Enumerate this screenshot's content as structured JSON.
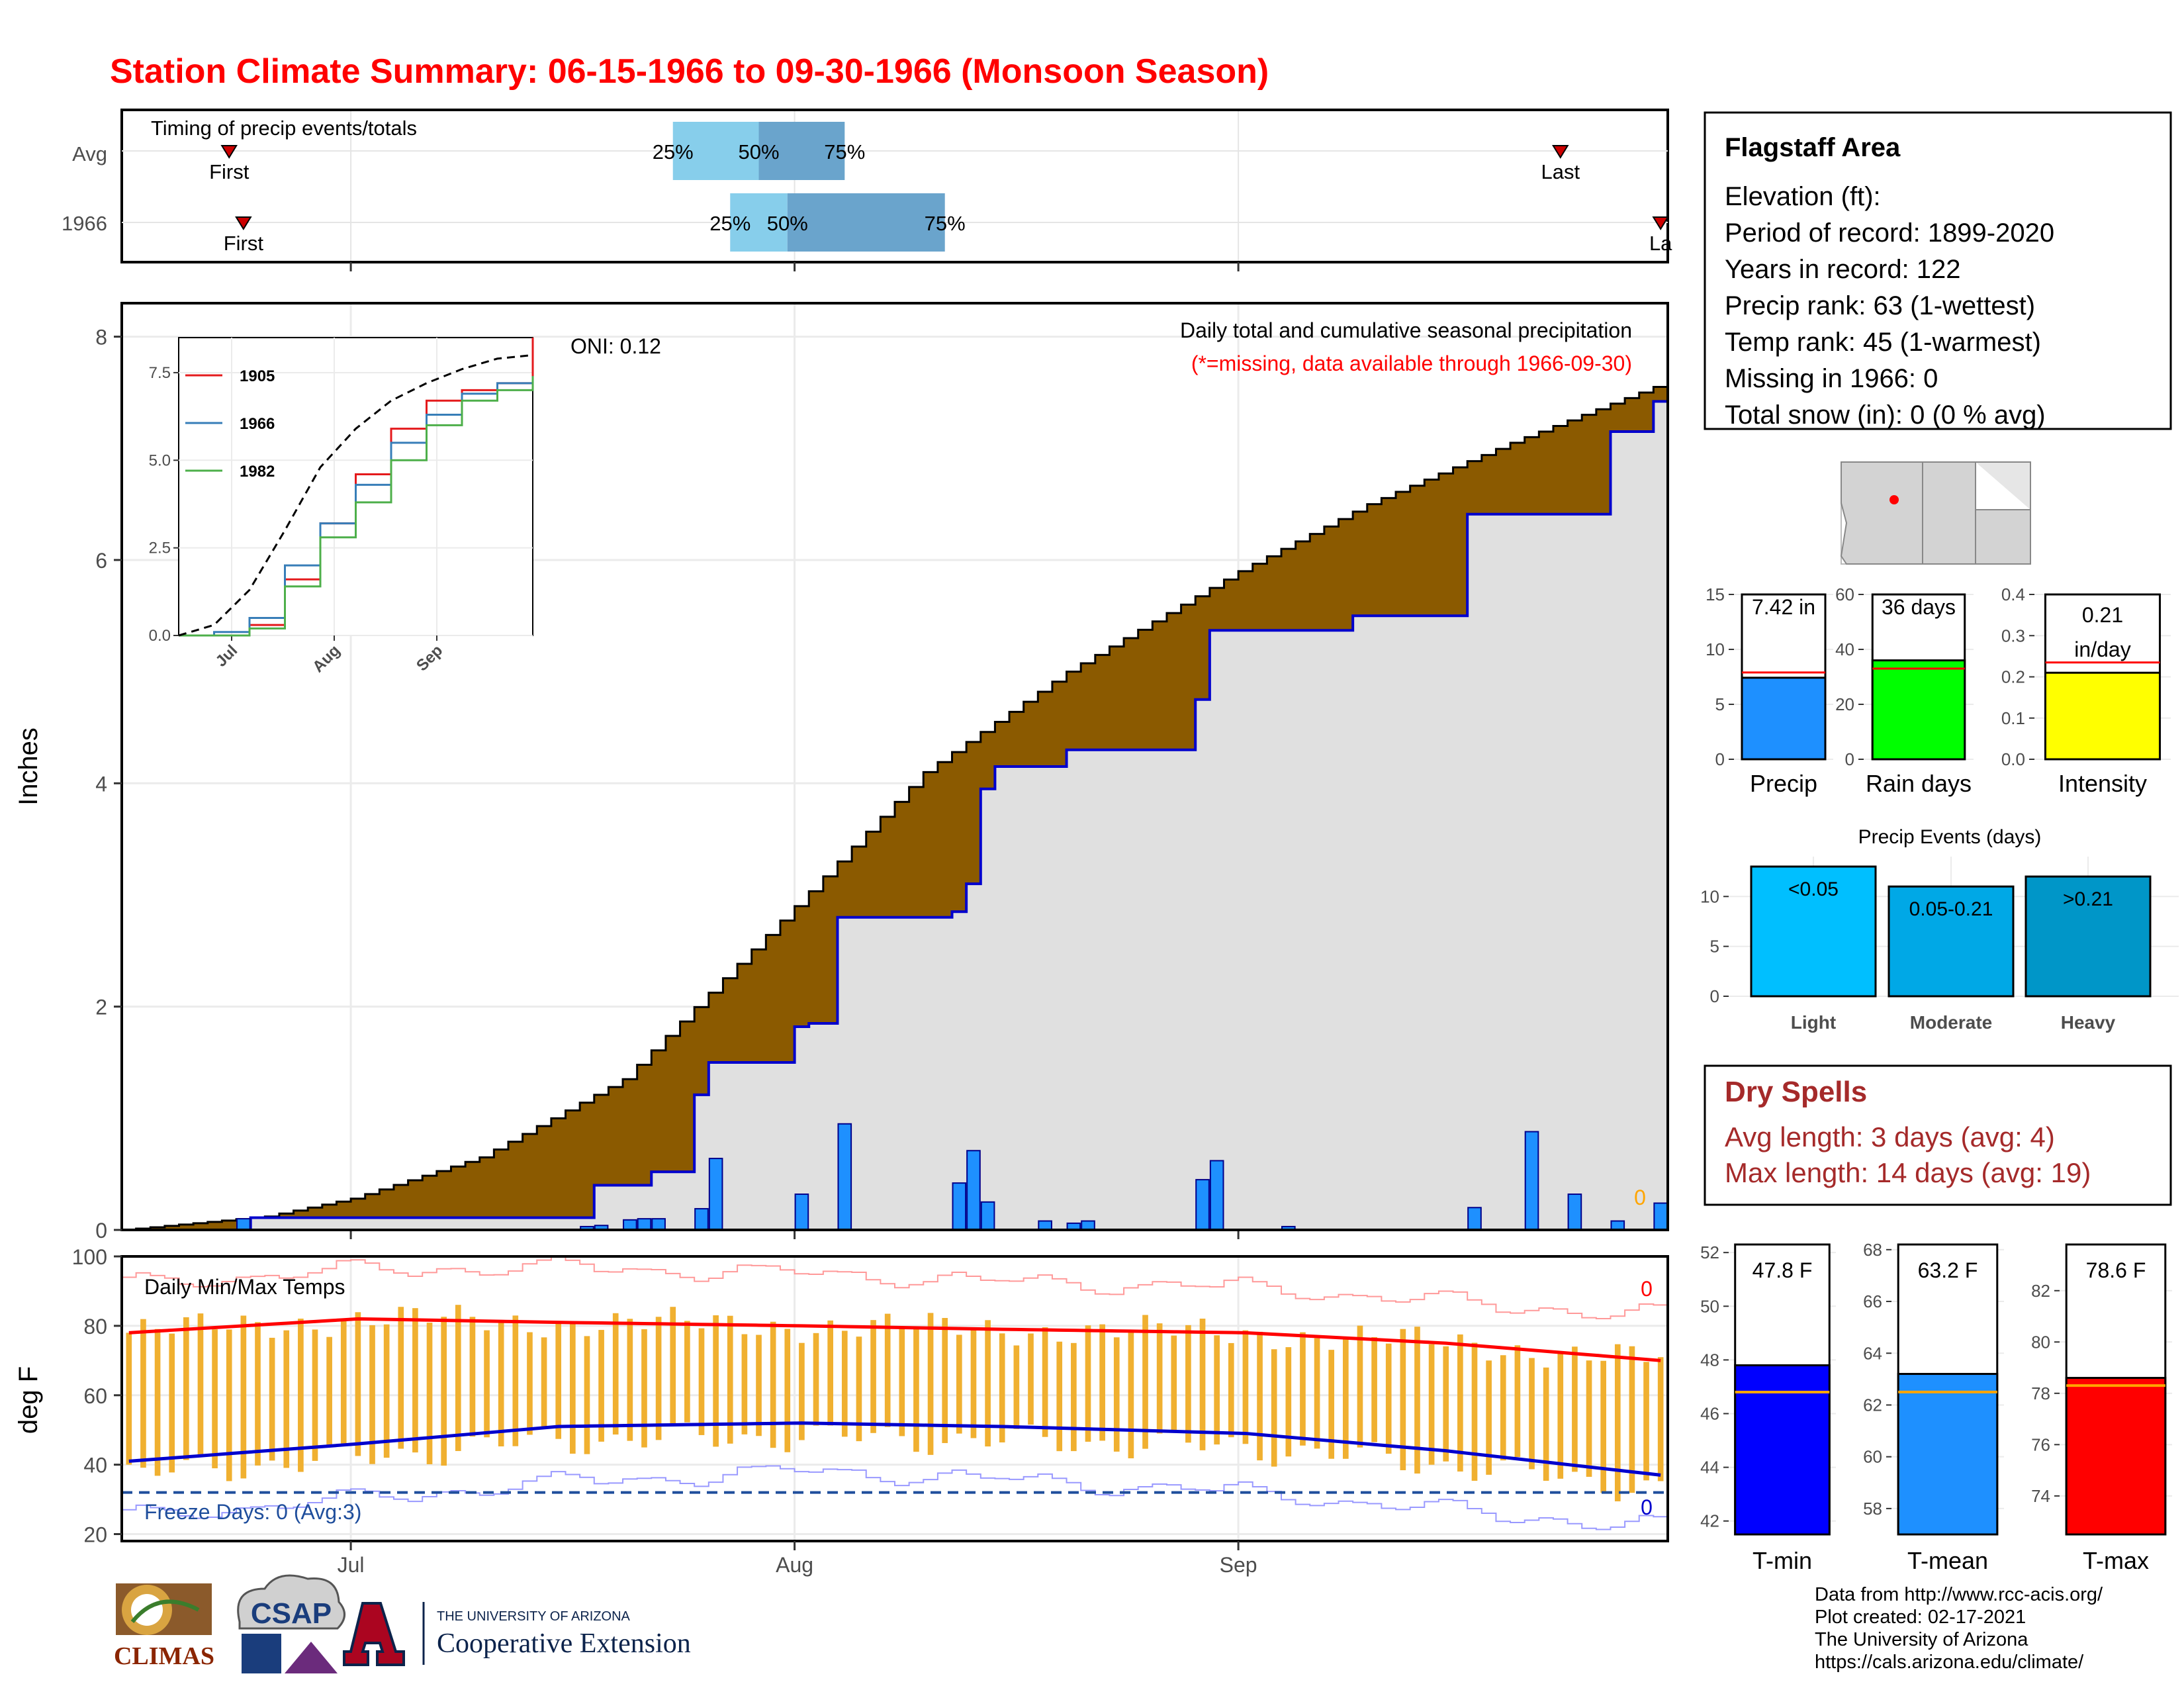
{
  "title": "Station Climate Summary: 06-15-1966 to 09-30-1966 (Monsoon Season)",
  "colors": {
    "title": "#ff0000",
    "avg_cum_fill": "#8b5a00",
    "obs_cum_fill": "#e0e0e0",
    "obs_line": "#0000cd",
    "daily_bar": "#1e90ff",
    "temp_bar": "#f0b030",
    "tmax_avg": "#ff0000",
    "tmin_avg": "#0000cd",
    "q_light": "#87ceeb",
    "q_dark": "#6aa4cc",
    "dry_spells": "#a52a2a",
    "freeze": "#1f4e9c",
    "missing_note": "#ff0000"
  },
  "timing": {
    "title": "Timing of precip events/totals",
    "rows": [
      {
        "label": "Avg",
        "first_label": "First",
        "last_label": "Last",
        "first": "06-22",
        "q25": "07-23",
        "q50": "07-29",
        "q75": "08-04",
        "last": "09-23",
        "q25_label": "25%",
        "q50_label": "50%",
        "q75_label": "75%"
      },
      {
        "label": "1966",
        "first_label": "First",
        "last_label": "La",
        "first": "06-23",
        "q25": "07-27",
        "q50": "07-31",
        "q75": "08-11",
        "last": "09-30",
        "q25_label": "25%",
        "q50_label": "50%",
        "q75_label": "75%"
      }
    ]
  },
  "precip_panel": {
    "ylabel": "Inches",
    "oni": "ONI: 0.12",
    "annot_title": "Daily total and cumulative seasonal precipitation",
    "annot_note": "(*=missing, data available through 1966-09-30)",
    "missing_count": "0",
    "yticks": [
      "0",
      "2",
      "4",
      "6",
      "8"
    ]
  },
  "inset": {
    "legend": [
      "1905",
      "1966",
      "1982"
    ],
    "legend_colors": [
      "#e41a1c",
      "#377eb8",
      "#4daf4a"
    ],
    "yticks": [
      "0.0",
      "2.5",
      "5.0",
      "7.5"
    ],
    "xticks": [
      "Jul",
      "Aug",
      "Sep"
    ]
  },
  "temp_panel": {
    "ylabel": "deg F",
    "title": "Daily Min/Max Temps",
    "freeze_label": "Freeze Days: 0 (Avg:3)",
    "max_record_count": "0",
    "min_record_count": "0",
    "yticks": [
      "20",
      "40",
      "60",
      "80",
      "100"
    ],
    "xticks": [
      "Jul",
      "Aug",
      "Sep"
    ]
  },
  "info": {
    "name": "Flagstaff Area",
    "lines": [
      "Elevation (ft):",
      "Period of record: 1899-2020",
      "Years in record: 122",
      "Precip rank: 63 (1-wettest)",
      "Temp rank: 45 (1-warmest)",
      "Missing in 1966: 0",
      "Total snow (in): 0 (0 % avg)"
    ]
  },
  "summary_bars": [
    {
      "name": "Precip",
      "label": "7.42 in",
      "value": 7.42,
      "avg": 7.9,
      "ymax": 15,
      "yticks": [
        "0",
        "5",
        "10",
        "15"
      ],
      "color": "#1e90ff"
    },
    {
      "name": "Rain days",
      "label": "36 days",
      "value": 36,
      "avg": 33,
      "ymax": 60,
      "yticks": [
        "0",
        "20",
        "40",
        "60"
      ],
      "color": "#00ff00"
    },
    {
      "name": "Intensity",
      "label": "0.21",
      "label2": "in/day",
      "value": 0.21,
      "avg": 0.235,
      "ymax": 0.4,
      "yticks": [
        "0.0",
        "0.1",
        "0.2",
        "0.3",
        "0.4"
      ],
      "color": "#ffff00"
    }
  ],
  "events": {
    "title": "Precip Events (days)",
    "yticks": [
      "0",
      "5",
      "10"
    ],
    "bars": [
      {
        "name": "Light",
        "label": "<0.05",
        "value": 13,
        "color": "#00bfff"
      },
      {
        "name": "Moderate",
        "label": "0.05-0.21",
        "value": 11,
        "color": "#00a8e6"
      },
      {
        "name": "Heavy",
        "label": ">0.21",
        "value": 12,
        "color": "#0096c8"
      }
    ]
  },
  "dry_spells": {
    "title": "Dry Spells",
    "avg_line": "Avg length: 3 days (avg: 4)",
    "max_line": "Max length: 14 days (avg: 19)"
  },
  "temp_bars": [
    {
      "name": "T-min",
      "label": "47.8 F",
      "value": 47.8,
      "avg": 46.8,
      "ymin": 41.5,
      "ymax": 52.3,
      "yticks": [
        "42",
        "44",
        "46",
        "48",
        "50",
        "52"
      ],
      "color": "#0000ff"
    },
    {
      "name": "T-mean",
      "label": "63.2 F",
      "value": 63.2,
      "avg": 62.5,
      "ymin": 57,
      "ymax": 68.2,
      "yticks": [
        "58",
        "60",
        "62",
        "64",
        "66",
        "68"
      ],
      "color": "#1e90ff"
    },
    {
      "name": "T-max",
      "label": "78.6 F",
      "value": 78.6,
      "avg": 78.3,
      "ymin": 72.5,
      "ymax": 83.8,
      "yticks": [
        "74",
        "76",
        "78",
        "80",
        "82"
      ],
      "color": "#ff0000"
    }
  ],
  "footer": {
    "lines": [
      "Data from http://www.rcc-acis.org/",
      "Plot created: 02-17-2021",
      "The University of Arizona",
      "https://cals.arizona.edu/climate/"
    ],
    "logo_climas": "CLIMAS",
    "logo_csap": "CSAP",
    "coop_small": "THE UNIVERSITY OF ARIZONA",
    "coop_big": "Cooperative Extension"
  },
  "chart_data": [
    {
      "type": "bar",
      "title": "Timing of precip events/totals",
      "categories": [
        "Avg",
        "1966"
      ],
      "series": [
        {
          "name": "First",
          "values": [
            "06-22",
            "06-23"
          ]
        },
        {
          "name": "25%",
          "values": [
            "07-23",
            "07-27"
          ]
        },
        {
          "name": "50%",
          "values": [
            "07-29",
            "07-31"
          ]
        },
        {
          "name": "75%",
          "values": [
            "08-04",
            "08-11"
          ]
        },
        {
          "name": "Last",
          "values": [
            "09-23",
            "09-30"
          ]
        }
      ]
    },
    {
      "type": "area",
      "title": "Daily total and cumulative seasonal precipitation",
      "ylabel": "Inches",
      "ylim": [
        0,
        8.3
      ],
      "x_range": [
        "1966-06-15",
        "1966-09-30"
      ],
      "xticks": [
        "Jul",
        "Aug",
        "Sep"
      ],
      "series": [
        {
          "name": "avg_cum",
          "x": [
            "06-15",
            "06-25",
            "07-01",
            "07-10",
            "07-20",
            "08-01",
            "08-10",
            "08-20",
            "09-01",
            "09-10",
            "09-20",
            "09-30"
          ],
          "values": [
            0,
            0.12,
            0.28,
            0.65,
            1.35,
            2.9,
            4.1,
            5.0,
            5.9,
            6.5,
            7.05,
            7.55
          ]
        },
        {
          "name": "obs_cum",
          "x": [
            "06-15",
            "06-23",
            "06-24",
            "07-10",
            "07-18",
            "07-22",
            "07-25",
            "07-26",
            "08-01",
            "08-02",
            "08-04",
            "08-12",
            "08-13",
            "08-14",
            "08-15",
            "08-20",
            "08-29",
            "08-30",
            "09-09",
            "09-17",
            "09-27",
            "09-30"
          ],
          "values": [
            0,
            0,
            0.11,
            0.11,
            0.4,
            0.52,
            1.21,
            1.5,
            1.82,
            1.85,
            2.8,
            2.85,
            3.1,
            3.95,
            4.15,
            4.3,
            4.75,
            5.37,
            5.5,
            6.41,
            7.15,
            7.42
          ]
        },
        {
          "name": "daily",
          "x": [
            "06-23",
            "07-17",
            "07-18",
            "07-20",
            "07-21",
            "07-22",
            "07-25",
            "07-26",
            "08-01",
            "08-04",
            "08-12",
            "08-13",
            "08-14",
            "08-18",
            "08-20",
            "08-21",
            "08-29",
            "08-30",
            "09-04",
            "09-17",
            "09-21",
            "09-24",
            "09-27",
            "09-30"
          ],
          "values": [
            0.1,
            0.03,
            0.04,
            0.09,
            0.1,
            0.1,
            0.19,
            0.64,
            0.32,
            0.95,
            0.42,
            0.71,
            0.25,
            0.08,
            0.06,
            0.08,
            0.45,
            0.62,
            0.03,
            0.2,
            0.88,
            0.32,
            0.08,
            0.24
          ]
        }
      ]
    },
    {
      "type": "line",
      "title": "inset cumulative precipitation",
      "ylim": [
        0,
        8.5
      ],
      "series": [
        {
          "name": "1905",
          "values": [
            0,
            0,
            0.3,
            1.6,
            3.2,
            4.6,
            5.9,
            6.7,
            7.0,
            7.2,
            8.5
          ]
        },
        {
          "name": "1966",
          "values": [
            0,
            0.1,
            0.5,
            2.0,
            3.2,
            4.3,
            5.5,
            6.3,
            6.9,
            7.2,
            7.4
          ]
        },
        {
          "name": "1982",
          "values": [
            0,
            0,
            0.2,
            1.4,
            2.8,
            3.8,
            5.0,
            6.0,
            6.7,
            7.0,
            7.4
          ]
        },
        {
          "name": "avg",
          "values": [
            0,
            0.3,
            1.3,
            3.0,
            4.8,
            5.9,
            6.7,
            7.2,
            7.6,
            7.9,
            8.0
          ]
        }
      ]
    },
    {
      "type": "bar",
      "title": "Daily Min/Max Temps",
      "ylabel": "deg F",
      "ylim": [
        18,
        100
      ],
      "series": [
        {
          "name": "tmax_avg",
          "x": [
            "06-15",
            "07-01",
            "07-15",
            "08-01",
            "08-15",
            "09-01",
            "09-15",
            "09-30"
          ],
          "values": [
            78,
            82,
            81,
            80,
            79,
            78,
            75,
            70
          ]
        },
        {
          "name": "tmin_avg",
          "x": [
            "06-15",
            "07-01",
            "07-15",
            "08-01",
            "08-15",
            "09-01",
            "09-15",
            "09-30"
          ],
          "values": [
            41,
            46,
            51,
            52,
            51,
            49,
            44,
            37
          ]
        },
        {
          "name": "tmax_record",
          "x": [
            "06-15",
            "07-01",
            "07-15",
            "08-01",
            "08-15",
            "09-01",
            "09-15",
            "09-30"
          ],
          "values": [
            92,
            96,
            97,
            95,
            93,
            91,
            87,
            83
          ]
        },
        {
          "name": "tmin_record",
          "x": [
            "06-15",
            "07-01",
            "07-15",
            "08-01",
            "08-15",
            "09-01",
            "09-15",
            "09-30"
          ],
          "values": [
            25,
            30,
            35,
            38,
            36,
            32,
            27,
            22
          ]
        },
        {
          "name": "freeze_threshold",
          "values": [
            32
          ]
        }
      ]
    }
  ]
}
